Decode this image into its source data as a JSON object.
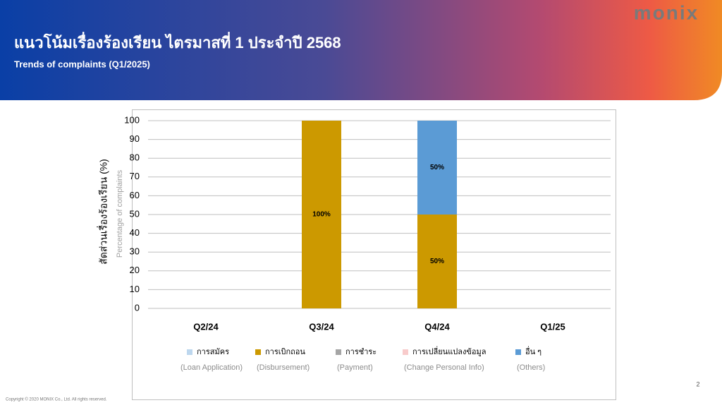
{
  "header": {
    "title": "แนวโน้มเรื่องร้องเรียน ไตรมาสที่ 1 ประจำปี 2568",
    "subtitle": "Trends of complaints (Q1/2025)",
    "logo": "monix"
  },
  "chart_data": {
    "type": "stacked_bar",
    "y_label": "สัดส่วนเรื่องร้องเรียน (%)",
    "y_label_sub": "Percentage of complaints",
    "categories": [
      "Q2/24",
      "Q3/24",
      "Q4/24",
      "Q1/25"
    ],
    "series": [
      {
        "name": "การสมัคร",
        "note": "(Loan Application)",
        "color": "#bdd7ee",
        "values": [
          0,
          0,
          0,
          0
        ]
      },
      {
        "name": "การเบิกถอน",
        "note": "(Disbursement)",
        "color": "#cc9900",
        "values": [
          0,
          100,
          50,
          0
        ],
        "value_labels": [
          null,
          "100%",
          "50%",
          null
        ]
      },
      {
        "name": "การชำระ",
        "note": "(Payment)",
        "color": "#a5a5a5",
        "values": [
          0,
          0,
          0,
          0
        ]
      },
      {
        "name": "การเปลี่ยนแปลงข้อมูล",
        "note": "(Change Personal Info)",
        "color": "#f8cbcb",
        "values": [
          0,
          0,
          0,
          0
        ]
      },
      {
        "name": "อื่น ๆ",
        "note": "(Others)",
        "color": "#5b9bd5",
        "values": [
          0,
          0,
          50,
          0
        ],
        "value_labels": [
          null,
          null,
          "50%",
          null
        ]
      }
    ],
    "ylim": [
      0,
      100
    ],
    "yticks": [
      0,
      10,
      20,
      30,
      40,
      50,
      60,
      70,
      80,
      90,
      100
    ],
    "grid": true
  },
  "footer": {
    "page": "2",
    "copyright": "Copyright © 2020 MONIX Co., Ltd. All rights reserved."
  }
}
